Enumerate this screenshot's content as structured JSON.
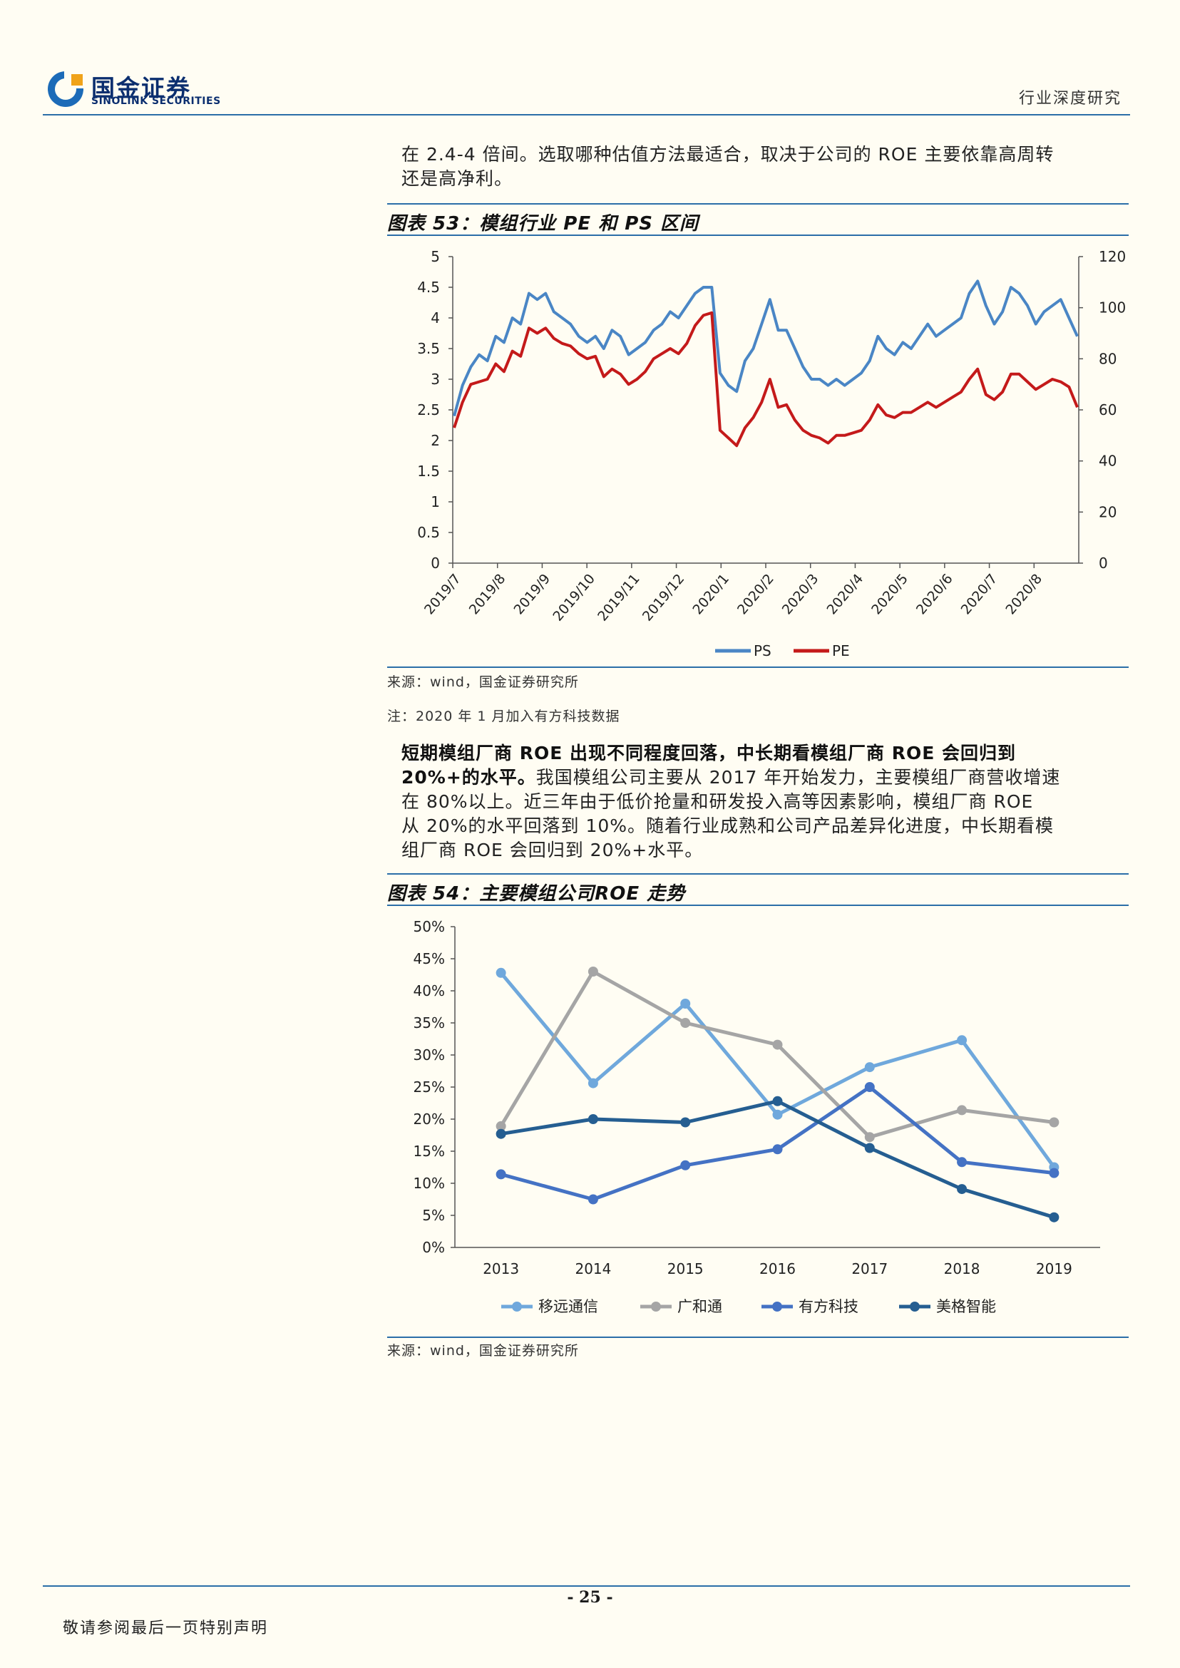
{
  "header": {
    "logo_cn": "国金证券",
    "logo_en": "SINOLINK SECURITIES",
    "right_text": "行业深度研究"
  },
  "intro_paragraph": [
    "在 2.4-4 倍间。选取哪种估值方法最适合，取决于公司的 ROE 主要依靠高周转",
    "还是高净利。"
  ],
  "fig53": {
    "title": "图表 53：模组行业 PE 和 PS 区间",
    "source": "来源：wind，国金证券研究所",
    "note": "注：2020 年 1 月加入有方科技数据"
  },
  "para2": {
    "bold_lines": [
      "短期模组厂商 ROE 出现不同程度回落，中长期看模组厂商 ROE 会回归到",
      "20%+的水平。"
    ],
    "rest_line1": "我国模组公司主要从 2017 年开始发力，主要模组厂商营收增速",
    "lines": [
      "在 80%以上。近三年由于低价抢量和研发投入高等因素影响，模组厂商 ROE",
      "从 20%的水平回落到 10%。随着行业成熟和公司产品差异化进度，中长期看模",
      "组厂商 ROE 会回归到 20%+水平。"
    ]
  },
  "fig54": {
    "title": "图表 54：主要模组公司ROE 走势",
    "source": "来源：wind，国金证券研究所"
  },
  "footer": {
    "page": "- 25 -",
    "disclaimer": "敬请参阅最后一页特别声明"
  },
  "chart_data": [
    {
      "type": "line",
      "x_ticks": [
        "2019/7",
        "2019/8",
        "2019/9",
        "2019/10",
        "2019/11",
        "2019/12",
        "2020/1",
        "2020/2",
        "2020/3",
        "2020/4",
        "2020/5",
        "2020/6",
        "2020/7",
        "2020/8"
      ],
      "y_left_ticks": [
        "5",
        "4.5",
        "4",
        "3.5",
        "3",
        "2.5",
        "2",
        "1.5",
        "1",
        "0.5",
        "0"
      ],
      "y_right_ticks": [
        "120",
        "100",
        "80",
        "60",
        "40",
        "20",
        "0"
      ],
      "ylim_left": [
        0,
        5
      ],
      "ylim_right": [
        0,
        120
      ],
      "legend_position": "bottom",
      "series": [
        {
          "name": "PS",
          "axis": "left",
          "color": "#4a86c5",
          "values": [
            2.4,
            2.9,
            3.2,
            3.4,
            3.3,
            3.7,
            3.6,
            4.0,
            3.9,
            4.4,
            4.3,
            4.4,
            4.1,
            4.0,
            3.9,
            3.7,
            3.6,
            3.7,
            3.5,
            3.8,
            3.7,
            3.4,
            3.5,
            3.6,
            3.8,
            3.9,
            4.1,
            4.0,
            4.2,
            4.4,
            4.5,
            4.5,
            3.1,
            2.9,
            2.8,
            3.3,
            3.5,
            3.9,
            4.3,
            3.8,
            3.8,
            3.5,
            3.2,
            3.0,
            3.0,
            2.9,
            3.0,
            2.9,
            3.0,
            3.1,
            3.3,
            3.7,
            3.5,
            3.4,
            3.6,
            3.5,
            3.7,
            3.9,
            3.7,
            3.8,
            3.9,
            4.0,
            4.4,
            4.6,
            4.2,
            3.9,
            4.1,
            4.5,
            4.4,
            4.2,
            3.9,
            4.1,
            4.2,
            4.3,
            4.0,
            3.7
          ]
        },
        {
          "name": "PE",
          "axis": "right",
          "color": "#c41a1a",
          "values": [
            53,
            63,
            70,
            71,
            72,
            78,
            75,
            83,
            81,
            92,
            90,
            92,
            88,
            86,
            85,
            82,
            80,
            81,
            73,
            76,
            74,
            70,
            72,
            75,
            80,
            82,
            84,
            82,
            86,
            93,
            97,
            98,
            52,
            49,
            46,
            53,
            57,
            63,
            72,
            61,
            62,
            56,
            52,
            50,
            49,
            47,
            50,
            50,
            51,
            52,
            56,
            62,
            58,
            57,
            59,
            59,
            61,
            63,
            61,
            63,
            65,
            67,
            72,
            76,
            66,
            64,
            67,
            74,
            74,
            71,
            68,
            70,
            72,
            71,
            69,
            61
          ]
        }
      ]
    },
    {
      "type": "line",
      "categories": [
        "2013",
        "2014",
        "2015",
        "2016",
        "2017",
        "2018",
        "2019"
      ],
      "y_ticks": [
        "50%",
        "45%",
        "40%",
        "35%",
        "30%",
        "25%",
        "20%",
        "15%",
        "10%",
        "5%",
        "0%"
      ],
      "ylim": [
        0,
        50
      ],
      "legend_position": "bottom",
      "series": [
        {
          "name": "移远通信",
          "color": "#6fa8dc",
          "values": [
            42.8,
            25.6,
            38.0,
            20.7,
            28.1,
            32.3,
            12.5
          ]
        },
        {
          "name": "广和通",
          "color": "#a5a5a5",
          "values": [
            18.9,
            43.0,
            35.0,
            31.6,
            17.2,
            21.4,
            19.5
          ]
        },
        {
          "name": "有方科技",
          "color": "#4472c4",
          "values": [
            11.4,
            7.5,
            12.8,
            15.3,
            25.0,
            13.3,
            11.6
          ]
        },
        {
          "name": "美格智能",
          "color": "#255e91",
          "values": [
            17.7,
            20.0,
            19.5,
            22.8,
            15.5,
            9.1,
            4.7
          ]
        }
      ]
    }
  ]
}
